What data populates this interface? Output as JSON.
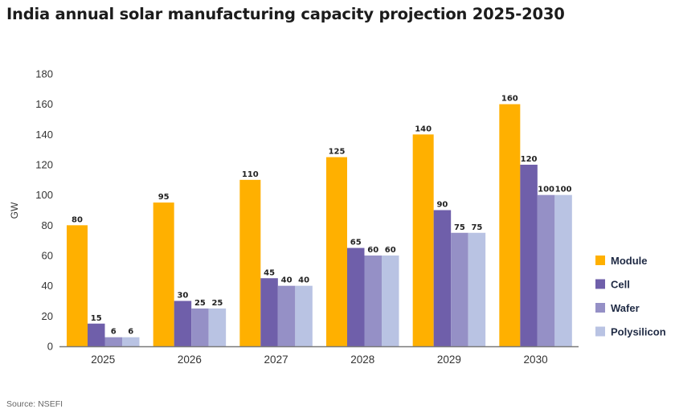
{
  "chart_data": {
    "type": "bar",
    "title": "India annual solar manufacturing capacity projection 2025-2030",
    "xlabel": "",
    "ylabel": "GW",
    "ylim": [
      0,
      180
    ],
    "yticks": [
      0,
      20,
      40,
      60,
      80,
      100,
      120,
      140,
      160,
      180
    ],
    "grid": false,
    "legend_position": "right",
    "categories": [
      "2025",
      "2026",
      "2027",
      "2028",
      "2029",
      "2030"
    ],
    "series": [
      {
        "name": "Module",
        "color": "#FFB000",
        "values": [
          80,
          95,
          110,
          125,
          140,
          160
        ]
      },
      {
        "name": "Cell",
        "color": "#6F5FAA",
        "values": [
          15,
          30,
          45,
          65,
          90,
          120
        ]
      },
      {
        "name": "Wafer",
        "color": "#9590C6",
        "values": [
          6,
          25,
          40,
          60,
          75,
          100
        ]
      },
      {
        "name": "Polysilicon",
        "color": "#B9C3E3",
        "values": [
          6,
          25,
          40,
          60,
          75,
          100
        ]
      }
    ],
    "source": "Source: NSEFI"
  }
}
